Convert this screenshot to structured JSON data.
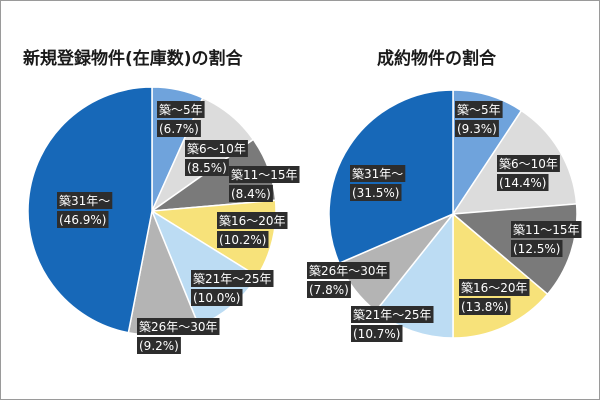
{
  "colors": {
    "built_0_5": "#6fa3dc",
    "built_6_10": "#dcdcdc",
    "built_11_15": "#7a7a7a",
    "built_16_20": "#f7e27a",
    "built_21_25": "#bcdcf3",
    "built_26_30": "#b4b4b4",
    "built_31_plus": "#1768b8",
    "label_box": "#2d2d2d"
  },
  "chart_data": [
    {
      "type": "pie",
      "title": "新規登録物件(在庫数)の割合",
      "categories": [
        "築～5年",
        "築6～10年",
        "築11～15年",
        "築16～20年",
        "築21年～25年",
        "築26年～30年",
        "築31年～"
      ],
      "values": [
        6.7,
        8.5,
        8.4,
        10.2,
        10.0,
        9.2,
        46.9
      ],
      "value_labels": [
        "(6.7%)",
        "(8.5%)",
        "(8.4%)",
        "(10.2%)",
        "(10.0%)",
        "(9.2%)",
        "(46.9%)"
      ],
      "start": "12 o'clock, clockwise",
      "legend": "none"
    },
    {
      "type": "pie",
      "title": "成約物件の割合",
      "categories": [
        "築～5年",
        "築6～10年",
        "築11～15年",
        "築16～20年",
        "築21年～25年",
        "築26年～30年",
        "築31年～"
      ],
      "values": [
        9.3,
        14.4,
        12.5,
        13.8,
        10.7,
        7.8,
        31.5
      ],
      "value_labels": [
        "(9.3%)",
        "(14.4%)",
        "(12.5%)",
        "(13.8%)",
        "(10.7%)",
        "(7.8%)",
        "(31.5%)"
      ],
      "start": "12 o'clock, clockwise",
      "legend": "none"
    }
  ]
}
